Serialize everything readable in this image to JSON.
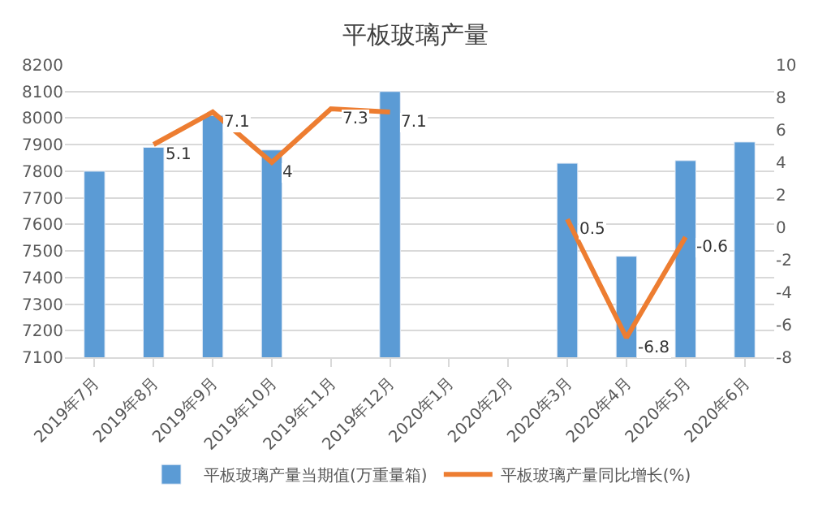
{
  "chart_data": {
    "type": "bar",
    "title": "平板玻璃产量",
    "categories": [
      "2019年7月",
      "2019年8月",
      "2019年9月",
      "2019年10月",
      "2019年11月",
      "2019年12月",
      "2020年1月",
      "2020年2月",
      "2020年3月",
      "2020年4月",
      "2020年5月",
      "2020年6月"
    ],
    "series": [
      {
        "name": "平板玻璃产量当期值(万重量箱)",
        "color": "#5b9bd5",
        "values": [
          7800,
          7890,
          8010,
          7880,
          null,
          8100,
          null,
          null,
          7830,
          7480,
          7840,
          7910
        ]
      },
      {
        "name": "平板玻璃产量同比增长(%)",
        "type": "line",
        "axis": "y2",
        "color": "#ed7d31",
        "values": [
          null,
          5.1,
          7.1,
          4,
          7.3,
          7.1,
          null,
          null,
          0.5,
          -6.8,
          -0.6,
          null
        ],
        "value_labels": [
          null,
          "5.1",
          "7.1",
          "4",
          "7.3",
          "7.1",
          null,
          null,
          "0.5",
          "-6.8",
          "-0.6",
          null
        ]
      }
    ],
    "ylim": [
      7100,
      8200
    ],
    "yticks": [
      7100,
      7200,
      7300,
      7400,
      7500,
      7600,
      7700,
      7800,
      7900,
      8000,
      8100,
      8200
    ],
    "y2lim": [
      -8,
      10
    ],
    "y2ticks": [
      -8,
      -6,
      -4,
      -2,
      0,
      2,
      4,
      6,
      8,
      10
    ],
    "grid": "y",
    "legend": "bottom",
    "marker": "none"
  }
}
